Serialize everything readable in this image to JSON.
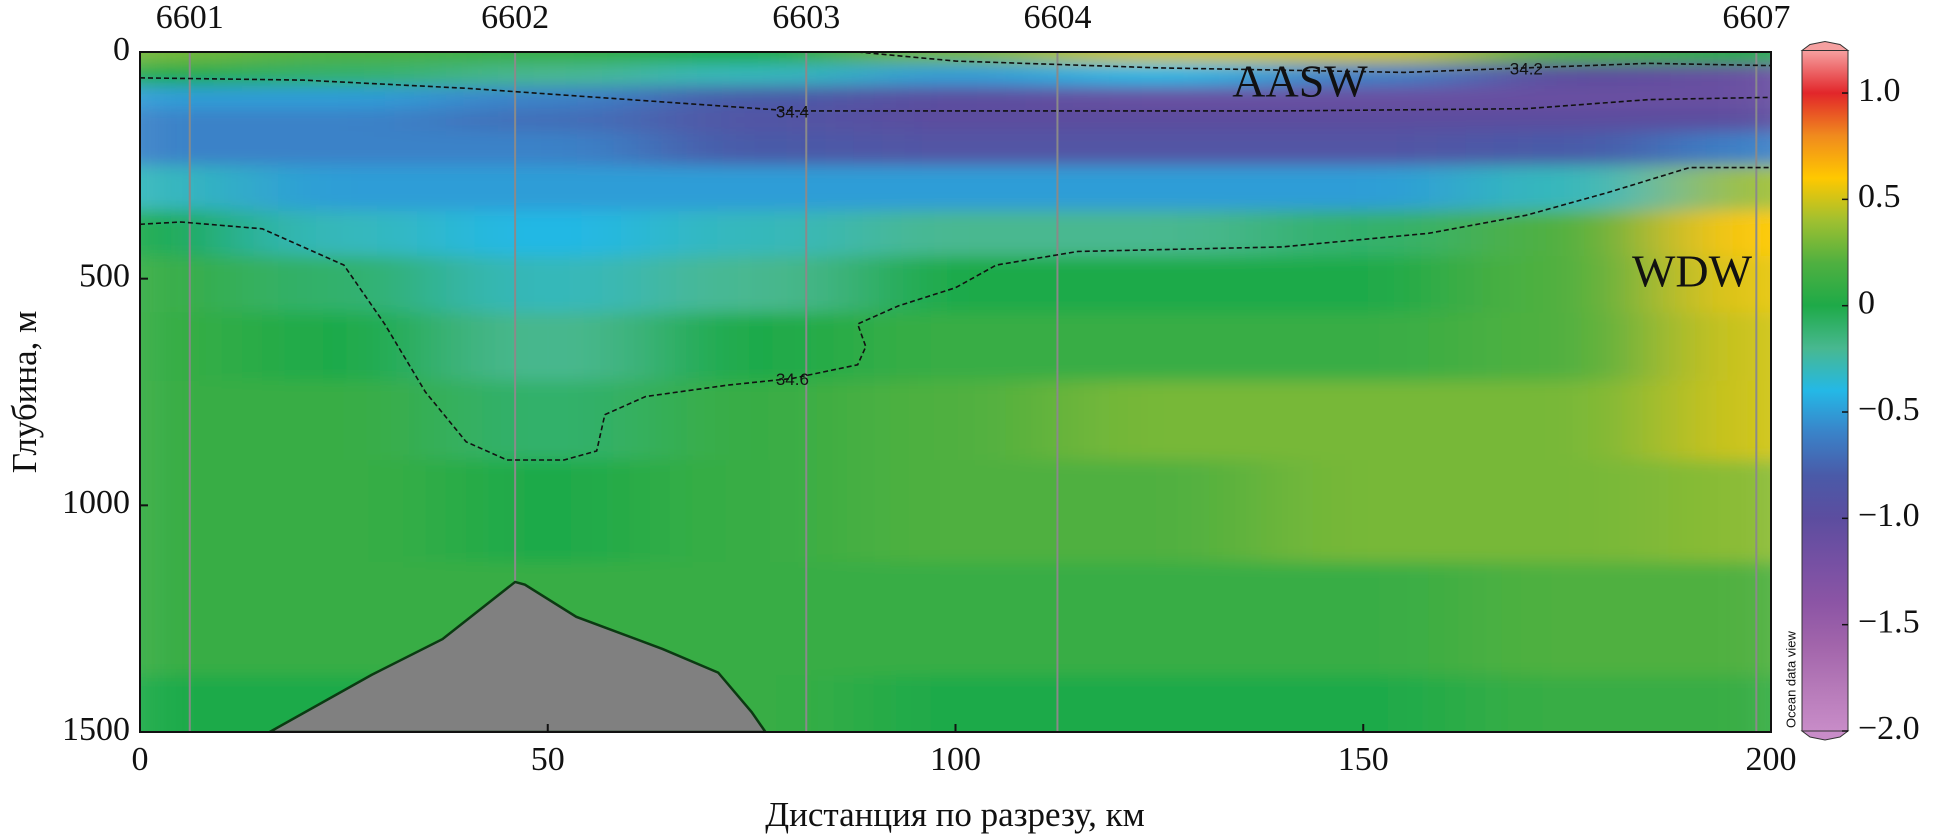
{
  "chart_data": {
    "type": "section",
    "x_label": "Дистанция по разрезу, км",
    "y_label": "Глубина, м",
    "xlim": [
      0,
      200
    ],
    "ylim": [
      0,
      1500
    ],
    "y_inverted": true,
    "xticks": [
      0,
      50,
      100,
      150,
      200
    ],
    "yticks": [
      0,
      500,
      1000,
      1500
    ],
    "stations": {
      "labels": [
        "6601",
        "6602",
        "6603",
        "6604",
        "6607"
      ],
      "x": [
        6.1,
        46,
        81.7,
        112.5,
        198.2
      ],
      "color": "#8a8a8a"
    },
    "field": {
      "x": [
        0,
        25,
        50,
        75,
        100,
        125,
        150,
        175,
        200
      ],
      "depth": [
        0,
        50,
        100,
        150,
        200,
        300,
        400,
        500,
        650,
        800,
        1000,
        1250,
        1500
      ],
      "values": [
        [
          0.3,
          0.2,
          0.1,
          0.0,
          0.3,
          0.5,
          0.5,
          0.2,
          0.0
        ],
        [
          0.0,
          -0.1,
          -0.2,
          -0.3,
          -0.5,
          -0.4,
          -0.6,
          -1.0,
          -1.1
        ],
        [
          -0.5,
          -0.5,
          -0.6,
          -0.8,
          -1.0,
          -1.1,
          -1.1,
          -1.1,
          -1.1
        ],
        [
          -0.6,
          -0.6,
          -0.7,
          -0.9,
          -1.0,
          -1.0,
          -1.0,
          -1.0,
          -1.0
        ],
        [
          -0.6,
          -0.6,
          -0.6,
          -0.8,
          -0.9,
          -0.9,
          -0.9,
          -0.8,
          -0.6
        ],
        [
          -0.3,
          -0.5,
          -0.5,
          -0.5,
          -0.5,
          -0.5,
          -0.5,
          -0.3,
          0.4
        ],
        [
          0.0,
          -0.3,
          -0.4,
          -0.3,
          -0.2,
          -0.2,
          -0.1,
          0.2,
          0.6
        ],
        [
          0.1,
          -0.1,
          -0.3,
          -0.2,
          0.0,
          0.0,
          0.0,
          0.2,
          0.55
        ],
        [
          0.1,
          0.0,
          -0.2,
          0.0,
          0.1,
          0.1,
          0.1,
          0.2,
          0.5
        ],
        [
          0.1,
          0.1,
          -0.1,
          0.1,
          0.2,
          0.3,
          0.3,
          0.3,
          0.5
        ],
        [
          0.1,
          0.1,
          0.0,
          0.1,
          0.2,
          0.2,
          0.3,
          0.3,
          0.35
        ],
        [
          0.1,
          0.1,
          0.1,
          0.1,
          0.1,
          0.1,
          0.1,
          0.2,
          0.2
        ],
        [
          0.0,
          0.0,
          0.1,
          0.1,
          0.0,
          0.0,
          0.0,
          0.1,
          0.1
        ]
      ]
    },
    "colorbar": {
      "lim": [
        -2,
        1.2
      ],
      "ticks": [
        {
          "value": 1,
          "label": "1.0"
        },
        {
          "value": 0.5,
          "label": "0.5"
        },
        0,
        {
          "value": -0.5,
          "label": "−0.5"
        },
        {
          "value": -1,
          "label": "−1.0"
        },
        {
          "value": -1.5,
          "label": "−1.5"
        },
        {
          "value": -2,
          "label": "−2.0"
        }
      ],
      "colors": [
        "#c88cc8",
        "#b67ab9",
        "#a265ab",
        "#8c55a5",
        "#7550a3",
        "#5c4d9f",
        "#4a5aa8",
        "#3a82c8",
        "#24b8e6",
        "#48b890",
        "#1eaa48",
        "#4fb040",
        "#a0c030",
        "#ffc800",
        "#f08a1e",
        "#e2262a",
        "#f6a0a0"
      ],
      "label": "Ocean data view"
    },
    "contours": [
      {
        "label": "34.2",
        "x": [
          88,
          100,
          125,
          155,
          170,
          185,
          200
        ],
        "depth": [
          0,
          20,
          35,
          45,
          35,
          25,
          30
        ]
      },
      {
        "label": "34.4",
        "x": [
          0,
          20,
          40,
          60,
          80,
          100,
          140,
          170,
          185,
          200
        ],
        "depth": [
          57,
          62,
          80,
          105,
          130,
          130,
          130,
          125,
          105,
          100
        ]
      },
      {
        "label": "34.6",
        "x": [
          0,
          5,
          15,
          25,
          30,
          35,
          40,
          45,
          52,
          56,
          57,
          62,
          72,
          80,
          88,
          89,
          88,
          93,
          100,
          105,
          115,
          140,
          158,
          170,
          180,
          190,
          200
        ],
        "depth": [
          380,
          375,
          390,
          470,
          600,
          750,
          860,
          900,
          900,
          880,
          800,
          760,
          735,
          720,
          690,
          650,
          600,
          560,
          520,
          470,
          440,
          430,
          400,
          360,
          310,
          255,
          255
        ]
      }
    ],
    "bottom": {
      "color": "#808080",
      "x": [
        15.9,
        28.4,
        37.1,
        46.0,
        47.2,
        53.5,
        64.1,
        70.9,
        75.0,
        76.7
      ],
      "depth": [
        1500,
        1374,
        1295,
        1169,
        1175,
        1246,
        1317,
        1369,
        1456,
        1500
      ]
    },
    "annotations": [
      "AASW",
      "WDW"
    ]
  }
}
